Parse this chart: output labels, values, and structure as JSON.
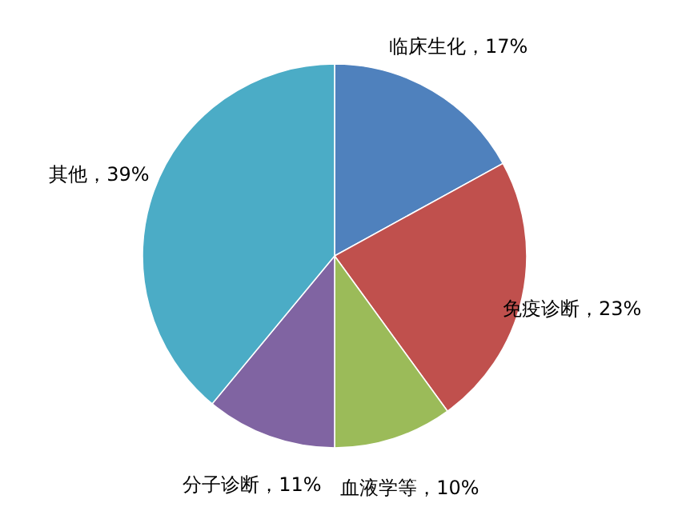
{
  "chart_data": {
    "type": "pie",
    "categories": [
      "临床生化",
      "免疫诊断",
      "血液学等",
      "分子诊断",
      "其他"
    ],
    "values": [
      17,
      23,
      10,
      11,
      39
    ],
    "value_labels": [
      "17%",
      "23%",
      "10%",
      "11%",
      "39%"
    ],
    "colors": [
      "#4f81bd",
      "#c0504d",
      "#9bbb59",
      "#8064a2",
      "#4bacc6"
    ]
  }
}
